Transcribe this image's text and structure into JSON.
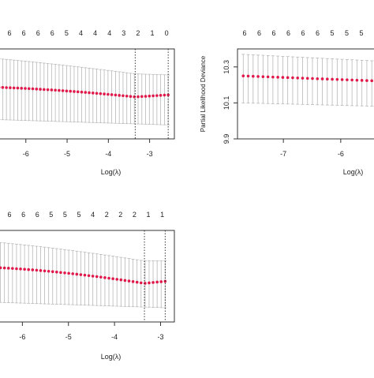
{
  "chart_data": [
    {
      "type": "scatter",
      "panel": "top-left",
      "xlabel": "Log(λ)",
      "ylabel": "",
      "xlim": [
        -7.2,
        -2.4
      ],
      "ylim": [
        9.9,
        10.35
      ],
      "x_ticks": [
        -6,
        -5,
        -4,
        -3
      ],
      "x_tick_labels": [
        "-6",
        "-5",
        "-4",
        "-3"
      ],
      "top_ticks": [
        "6",
        "6",
        "6",
        "6",
        "5",
        "4",
        "4",
        "4",
        "3",
        "2",
        "1",
        "0"
      ],
      "vlines": [
        -3.35,
        -2.55
      ],
      "series": [
        {
          "mean_start": 10.16,
          "mean_end": 10.12,
          "mean_mid": 10.15,
          "dip_x": -3.35,
          "dip_y": 10.11,
          "upper_start": 10.31,
          "upper_end": 10.22,
          "lower_start": 10.0,
          "lower_end": 9.97,
          "x_start": -7.2,
          "x_end": -2.55,
          "count": 52
        }
      ]
    },
    {
      "type": "scatter",
      "panel": "top-right",
      "xlabel": "Log(λ)",
      "ylabel": "Partial Likelihood Deviance",
      "xlim": [
        -7.8,
        -5.2
      ],
      "ylim": [
        9.9,
        10.4
      ],
      "y_ticks": [
        9.9,
        10.1,
        10.3
      ],
      "y_tick_labels": [
        "9.9",
        "10.1",
        "10.3"
      ],
      "x_ticks": [
        -7,
        -6
      ],
      "x_tick_labels": [
        "-7",
        "-6"
      ],
      "top_ticks": [
        "6",
        "6",
        "6",
        "6",
        "6",
        "6",
        "5",
        "5",
        "5",
        "5"
      ],
      "series": [
        {
          "mean_start": 10.25,
          "mean_end": 10.22,
          "upper_start": 10.37,
          "upper_end": 10.33,
          "lower_start": 10.1,
          "lower_end": 10.08,
          "x_start": -7.7,
          "x_end": -5.2,
          "count": 30
        }
      ]
    },
    {
      "type": "scatter",
      "panel": "bottom-left",
      "xlabel": "Log(λ)",
      "ylabel": "",
      "xlim": [
        -7.0,
        -2.7
      ],
      "ylim": [
        9.9,
        10.35
      ],
      "x_ticks": [
        -6,
        -5,
        -4,
        -3
      ],
      "x_tick_labels": [
        "-6",
        "-5",
        "-4",
        "-3"
      ],
      "top_ticks": [
        "6",
        "6",
        "6",
        "5",
        "5",
        "5",
        "4",
        "2",
        "2",
        "2",
        "1",
        "1"
      ],
      "vlines": [
        -3.35,
        -2.9
      ],
      "series": [
        {
          "mean_start": 10.17,
          "mean_end": 10.1,
          "mean_mid": 10.14,
          "dip_x": -3.35,
          "dip_y": 10.09,
          "upper_start": 10.3,
          "upper_end": 10.2,
          "lower_start": 10.0,
          "lower_end": 9.97,
          "x_start": -7.0,
          "x_end": -2.9,
          "count": 48
        }
      ]
    }
  ]
}
